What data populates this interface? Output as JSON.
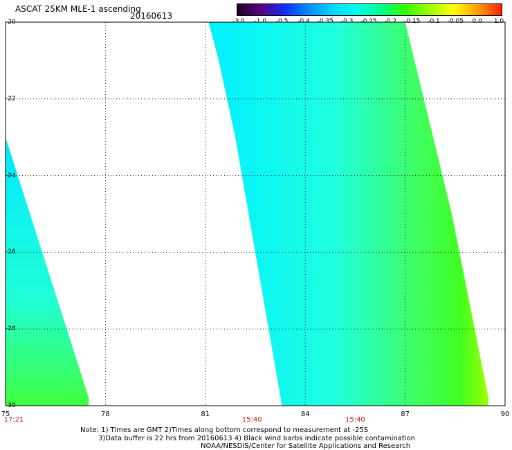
{
  "header": {
    "title": "ASCAT 25KM MLE-1 ascending",
    "date": "20160613"
  },
  "colorbar": {
    "labels": [
      "-3.0",
      "-1.0",
      "-0.5",
      "-0.4",
      "-0.35",
      "-0.3",
      "-0.25",
      "-0.2",
      "-0.15",
      "-0.1",
      "-0.05",
      "0.0",
      "1.0"
    ],
    "colors": [
      "#200020",
      "#5a0080",
      "#1030ff",
      "#0090ff",
      "#00d8ff",
      "#00ffe8",
      "#00ff90",
      "#30ff00",
      "#a0ff00",
      "#ffff00",
      "#ffa000",
      "#ff2000"
    ]
  },
  "map": {
    "lon_range": [
      75,
      90
    ],
    "lat_range": [
      -20,
      -30
    ],
    "x_ticks": [
      "75",
      "78",
      "81",
      "84",
      "87",
      "90"
    ],
    "y_ticks": [
      "-20",
      "-22",
      "-24",
      "-26",
      "-28",
      "-30"
    ],
    "pass_times": [
      {
        "label": "17:21",
        "lon": 75.0
      },
      {
        "label": "15:40",
        "lon": 82.4
      },
      {
        "label": "15:40",
        "lon": 85.5
      }
    ],
    "swaths": [
      {
        "name": "left-swath",
        "polygon": [
          [
            75.0,
            -23.0
          ],
          [
            77.5,
            -29.8
          ],
          [
            77.5,
            -30.0
          ],
          [
            75.0,
            -30.0
          ]
        ]
      },
      {
        "name": "right-swath",
        "polygon": [
          [
            81.1,
            -20.0
          ],
          [
            87.0,
            -20.0
          ],
          [
            88.4,
            -25.0
          ],
          [
            89.5,
            -29.8
          ],
          [
            89.5,
            -30.0
          ],
          [
            83.3,
            -30.0
          ],
          [
            81.9,
            -23.0
          ],
          [
            81.4,
            -21.0
          ]
        ]
      }
    ]
  },
  "notes": {
    "line1": "Note: 1) Times are GMT 2)Times along bottom correspond to measurement at -25S",
    "line2": "3)Data buffer is 22 hrs from 20160613 4) Black wind barbs indicate possible contamination",
    "line3": "NOAA/NESDIS/Center for Satellite Applications and Research"
  }
}
